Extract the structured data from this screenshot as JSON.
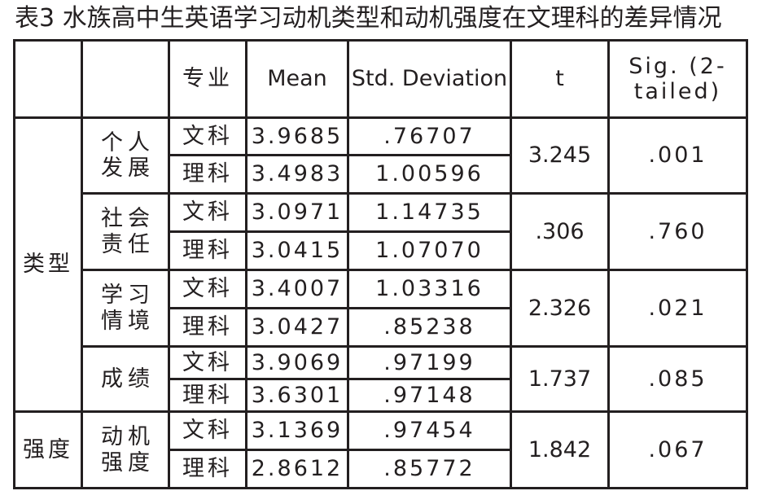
{
  "title": "表3 水族高中生英语学习动机类型和动机强度在文理科的差异情况",
  "headers": {
    "group": "",
    "sub": "",
    "major": "专业",
    "mean": "Mean",
    "sd": "Std. Deviation",
    "t": "t",
    "sig": "Sig. (2-tailed)"
  },
  "groups": [
    {
      "label": "类型",
      "items": [
        {
          "label": "个人发展",
          "t": "3.245",
          "sig": ".001",
          "rows": [
            {
              "major": "文科",
              "mean": "3.9685",
              "sd": ".76707"
            },
            {
              "major": "理科",
              "mean": "3.4983",
              "sd": "1.00596"
            }
          ]
        },
        {
          "label": "社会责任",
          "t": ".306",
          "sig": ".760",
          "rows": [
            {
              "major": "文科",
              "mean": "3.0971",
              "sd": "1.14735"
            },
            {
              "major": "理科",
              "mean": "3.0415",
              "sd": "1.07070"
            }
          ]
        },
        {
          "label": "学习情境",
          "t": "2.326",
          "sig": ".021",
          "rows": [
            {
              "major": "文科",
              "mean": "3.4007",
              "sd": "1.03316"
            },
            {
              "major": "理科",
              "mean": "3.0427",
              "sd": ".85238"
            }
          ]
        },
        {
          "label": "成绩",
          "t": "1.737",
          "sig": ".085",
          "rows": [
            {
              "major": "文科",
              "mean": "3.9069",
              "sd": ".97199"
            },
            {
              "major": "理科",
              "mean": "3.6301",
              "sd": ".97148"
            }
          ]
        }
      ]
    },
    {
      "label": "强度",
      "items": [
        {
          "label": "动机强度",
          "t": "1.842",
          "sig": ".067",
          "rows": [
            {
              "major": "文科",
              "mean": "3.1369",
              "sd": ".97454"
            },
            {
              "major": "理科",
              "mean": "2.8612",
              "sd": ".85772"
            }
          ]
        }
      ]
    }
  ]
}
